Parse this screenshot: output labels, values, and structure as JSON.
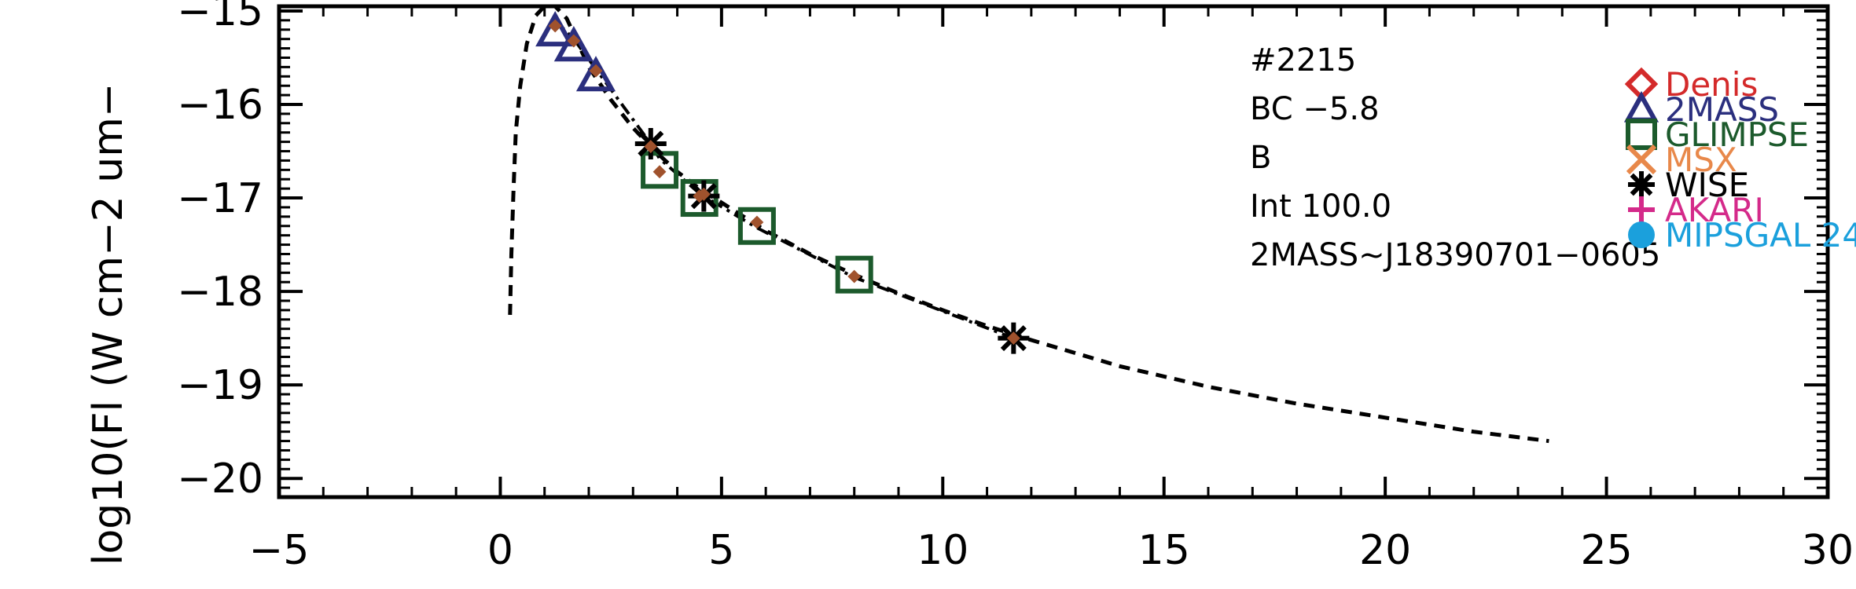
{
  "chart_data": {
    "type": "scatter",
    "title": "",
    "xlabel": "",
    "ylabel": "log10(Fl (W cm−2 um−",
    "xlim": [
      -5,
      30
    ],
    "ylim": [
      -20.2,
      -14.95
    ],
    "x_ticks": [
      -5,
      0,
      5,
      10,
      15,
      20,
      25,
      30
    ],
    "x_tick_labels": [
      "−5",
      "0",
      "5",
      "10",
      "15",
      "20",
      "25",
      "30"
    ],
    "y_ticks": [
      -15,
      -16,
      -17,
      -18,
      -19,
      -20
    ],
    "y_tick_labels": [
      "−15",
      "−16",
      "−17",
      "−18",
      "−19",
      "−20"
    ],
    "grid": false,
    "legend_position": "top-right",
    "annotations": [
      "#2215",
      "BC −5.8",
      "B",
      "Int 100.0",
      "2MASS~J18390701−0605"
    ],
    "series": [
      {
        "name": "Denis",
        "color": "#d42a2a",
        "marker": "diamond",
        "points": []
      },
      {
        "name": "2MASS",
        "color": "#2b2f7e",
        "marker": "triangle",
        "points": [
          [
            1.24,
            -15.22
          ],
          [
            1.66,
            -15.38
          ],
          [
            2.16,
            -15.7
          ]
        ]
      },
      {
        "name": "GLIMPSE",
        "color": "#1c5a2c",
        "marker": "square",
        "points": [
          [
            3.6,
            -16.7
          ],
          [
            4.5,
            -17.0
          ],
          [
            5.8,
            -17.3
          ],
          [
            8.0,
            -17.82
          ]
        ]
      },
      {
        "name": "MSX",
        "color": "#e8884a",
        "marker": "x",
        "points": []
      },
      {
        "name": "WISE",
        "color": "#000000",
        "marker": "asterisk",
        "points": [
          [
            3.4,
            -16.42
          ],
          [
            4.6,
            -16.98
          ],
          [
            11.6,
            -18.5
          ]
        ]
      },
      {
        "name": "AKARI",
        "color": "#d42a8a",
        "marker": "plus",
        "points": []
      },
      {
        "name": "MIPSGAL 24",
        "color": "#1ba0dc",
        "marker": "circle",
        "points": []
      },
      {
        "name": "",
        "color": "#a0522d",
        "marker": "small-diamond",
        "points": [
          [
            1.24,
            -15.16
          ],
          [
            1.66,
            -15.32
          ],
          [
            2.16,
            -15.64
          ],
          [
            3.4,
            -16.45
          ],
          [
            3.6,
            -16.72
          ],
          [
            4.5,
            -16.98
          ],
          [
            4.6,
            -16.96
          ],
          [
            5.8,
            -17.26
          ],
          [
            8.0,
            -17.84
          ],
          [
            11.6,
            -18.5
          ]
        ]
      }
    ],
    "model_curve": {
      "style": "dashed",
      "points": [
        [
          0.22,
          -18.25
        ],
        [
          0.25,
          -17.6
        ],
        [
          0.3,
          -16.9
        ],
        [
          0.35,
          -16.3
        ],
        [
          0.45,
          -15.8
        ],
        [
          0.6,
          -15.35
        ],
        [
          0.8,
          -15.05
        ],
        [
          1.0,
          -14.93
        ],
        [
          1.24,
          -14.9
        ],
        [
          1.5,
          -15.08
        ],
        [
          2.0,
          -15.6
        ],
        [
          2.5,
          -15.95
        ],
        [
          3.0,
          -16.25
        ],
        [
          3.5,
          -16.5
        ],
        [
          4.0,
          -16.72
        ],
        [
          4.5,
          -16.9
        ],
        [
          5.0,
          -17.05
        ],
        [
          6.0,
          -17.35
        ],
        [
          7.0,
          -17.6
        ],
        [
          8.0,
          -17.82
        ],
        [
          9.0,
          -18.02
        ],
        [
          10.0,
          -18.2
        ],
        [
          11.0,
          -18.37
        ],
        [
          12.0,
          -18.52
        ],
        [
          14.0,
          -18.8
        ],
        [
          16.0,
          -19.02
        ],
        [
          18.0,
          -19.2
        ],
        [
          20.0,
          -19.35
        ],
        [
          22.0,
          -19.5
        ],
        [
          23.7,
          -19.6
        ]
      ]
    },
    "fit_curve": {
      "style": "dash-dot",
      "points": [
        [
          1.24,
          -15.1
        ],
        [
          1.66,
          -15.3
        ],
        [
          2.16,
          -15.62
        ],
        [
          3.4,
          -16.42
        ],
        [
          3.6,
          -16.58
        ],
        [
          4.5,
          -16.95
        ],
        [
          4.6,
          -16.98
        ],
        [
          5.8,
          -17.32
        ],
        [
          8.0,
          -17.85
        ],
        [
          11.6,
          -18.5
        ]
      ]
    }
  }
}
